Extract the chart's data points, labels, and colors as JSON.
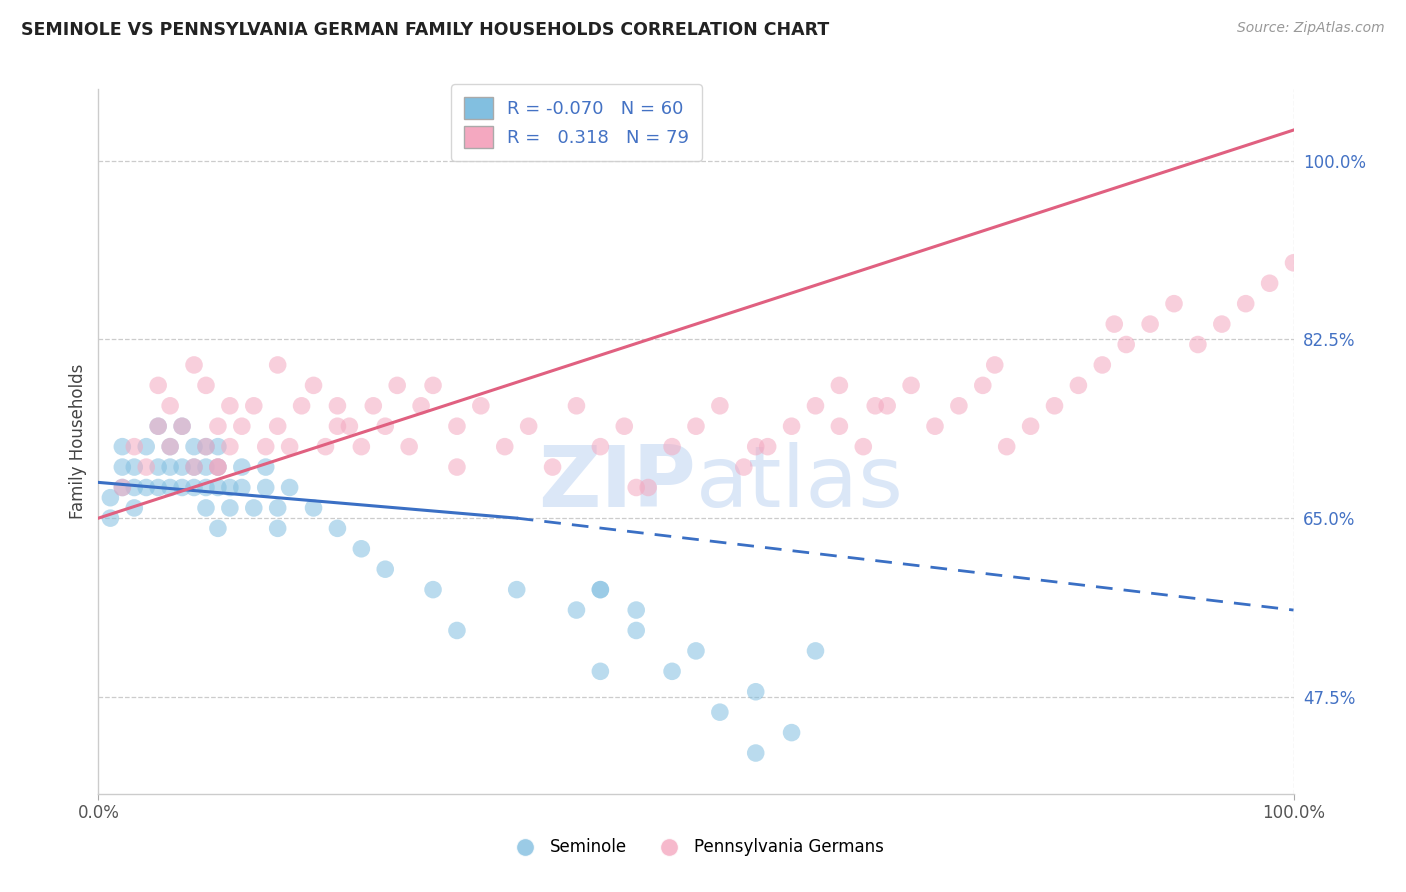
{
  "title": "SEMINOLE VS PENNSYLVANIA GERMAN FAMILY HOUSEHOLDS CORRELATION CHART",
  "source": "Source: ZipAtlas.com",
  "ylabel": "Family Households",
  "xlim": [
    0.0,
    100.0
  ],
  "ylim": [
    38.0,
    107.0
  ],
  "yticks": [
    47.5,
    65.0,
    82.5,
    100.0
  ],
  "legend_blue_R": "-0.070",
  "legend_blue_N": "60",
  "legend_pink_R": "0.318",
  "legend_pink_N": "79",
  "blue_color": "#82bfe0",
  "pink_color": "#f4a8c0",
  "blue_line_color": "#3a6fc4",
  "pink_line_color": "#e06080",
  "watermark_color": "#ccddf5",
  "grid_color": "#cccccc",
  "seminole_x": [
    1,
    1,
    2,
    2,
    2,
    3,
    3,
    3,
    4,
    4,
    5,
    5,
    5,
    6,
    6,
    6,
    7,
    7,
    7,
    8,
    8,
    8,
    9,
    9,
    9,
    9,
    10,
    10,
    10,
    10,
    11,
    11,
    12,
    12,
    13,
    14,
    14,
    15,
    15,
    16,
    18,
    20,
    22,
    24,
    28,
    30,
    35,
    40,
    42,
    45,
    50,
    55,
    58,
    60,
    42,
    45,
    48,
    52,
    55,
    42
  ],
  "seminole_y": [
    67,
    65,
    70,
    68,
    72,
    66,
    68,
    70,
    72,
    68,
    74,
    70,
    68,
    72,
    68,
    70,
    74,
    70,
    68,
    72,
    70,
    68,
    72,
    70,
    68,
    66,
    68,
    70,
    72,
    64,
    68,
    66,
    70,
    68,
    66,
    70,
    68,
    66,
    64,
    68,
    66,
    64,
    62,
    60,
    58,
    54,
    58,
    56,
    50,
    56,
    52,
    48,
    44,
    52,
    58,
    54,
    50,
    46,
    42,
    58
  ],
  "pa_german_x": [
    2,
    3,
    4,
    5,
    5,
    6,
    6,
    7,
    8,
    8,
    9,
    9,
    10,
    10,
    11,
    11,
    12,
    13,
    14,
    15,
    15,
    16,
    17,
    18,
    19,
    20,
    21,
    22,
    23,
    24,
    25,
    26,
    27,
    28,
    30,
    32,
    34,
    36,
    38,
    40,
    42,
    44,
    46,
    48,
    50,
    52,
    54,
    56,
    58,
    60,
    62,
    64,
    66,
    68,
    70,
    72,
    74,
    76,
    78,
    80,
    82,
    84,
    86,
    88,
    90,
    92,
    94,
    96,
    98,
    100,
    55,
    62,
    45,
    30,
    20,
    10,
    75,
    85,
    65
  ],
  "pa_german_y": [
    68,
    72,
    70,
    74,
    78,
    72,
    76,
    74,
    80,
    70,
    72,
    78,
    74,
    70,
    76,
    72,
    74,
    76,
    72,
    80,
    74,
    72,
    76,
    78,
    72,
    76,
    74,
    72,
    76,
    74,
    78,
    72,
    76,
    78,
    74,
    76,
    72,
    74,
    70,
    76,
    72,
    74,
    68,
    72,
    74,
    76,
    70,
    72,
    74,
    76,
    74,
    72,
    76,
    78,
    74,
    76,
    78,
    72,
    74,
    76,
    78,
    80,
    82,
    84,
    86,
    82,
    84,
    86,
    88,
    90,
    72,
    78,
    68,
    70,
    74,
    70,
    80,
    84,
    76
  ],
  "blue_trendline_x": [
    0,
    35,
    100
  ],
  "blue_trendline_y": [
    68.5,
    65.0,
    56.0
  ],
  "blue_solid_end": 35,
  "pink_trendline_x": [
    0,
    100
  ],
  "pink_trendline_y": [
    65.0,
    103.0
  ]
}
